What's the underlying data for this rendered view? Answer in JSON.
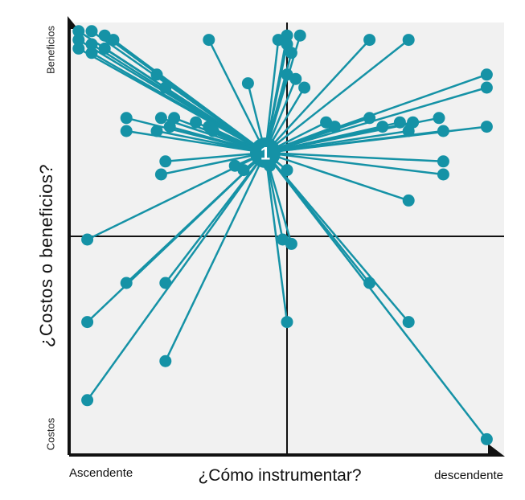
{
  "chart_data": {
    "type": "scatter",
    "xlabel": "¿Cómo instrumentar?",
    "ylabel": "¿Costos o beneficios?",
    "x_tick_labels": [
      "Ascendente",
      "descendente"
    ],
    "y_tick_labels": [
      "Costos",
      "Beneficios"
    ],
    "xlim": [
      0,
      100
    ],
    "ylim": [
      0,
      100
    ],
    "grid": false,
    "center_label": "1",
    "center": {
      "x": 45,
      "y": 70
    },
    "colors": {
      "series": "#1592a6",
      "background": "#f1f1f1",
      "axes": "#111111"
    },
    "points": [
      {
        "x": 2,
        "y": 98
      },
      {
        "x": 5,
        "y": 98
      },
      {
        "x": 8,
        "y": 97
      },
      {
        "x": 10,
        "y": 96
      },
      {
        "x": 2,
        "y": 96
      },
      {
        "x": 5,
        "y": 95
      },
      {
        "x": 8,
        "y": 94
      },
      {
        "x": 2,
        "y": 94
      },
      {
        "x": 5,
        "y": 93
      },
      {
        "x": 20,
        "y": 88
      },
      {
        "x": 22,
        "y": 85
      },
      {
        "x": 32,
        "y": 96
      },
      {
        "x": 41,
        "y": 86
      },
      {
        "x": 48,
        "y": 96
      },
      {
        "x": 50,
        "y": 97
      },
      {
        "x": 53,
        "y": 97
      },
      {
        "x": 50,
        "y": 95
      },
      {
        "x": 51,
        "y": 93
      },
      {
        "x": 50,
        "y": 88
      },
      {
        "x": 52,
        "y": 87
      },
      {
        "x": 54,
        "y": 85
      },
      {
        "x": 69,
        "y": 96
      },
      {
        "x": 78,
        "y": 96
      },
      {
        "x": 96,
        "y": 88
      },
      {
        "x": 96,
        "y": 85
      },
      {
        "x": 13,
        "y": 78
      },
      {
        "x": 21,
        "y": 78
      },
      {
        "x": 24,
        "y": 78
      },
      {
        "x": 29,
        "y": 77
      },
      {
        "x": 32,
        "y": 76
      },
      {
        "x": 13,
        "y": 75
      },
      {
        "x": 20,
        "y": 75
      },
      {
        "x": 23,
        "y": 76
      },
      {
        "x": 33,
        "y": 75
      },
      {
        "x": 59,
        "y": 77
      },
      {
        "x": 61,
        "y": 76
      },
      {
        "x": 69,
        "y": 78
      },
      {
        "x": 72,
        "y": 76
      },
      {
        "x": 76,
        "y": 77
      },
      {
        "x": 79,
        "y": 77
      },
      {
        "x": 85,
        "y": 78
      },
      {
        "x": 96,
        "y": 76
      },
      {
        "x": 78,
        "y": 75
      },
      {
        "x": 86,
        "y": 75
      },
      {
        "x": 22,
        "y": 68
      },
      {
        "x": 21,
        "y": 65
      },
      {
        "x": 38,
        "y": 67
      },
      {
        "x": 40,
        "y": 66
      },
      {
        "x": 46,
        "y": 67
      },
      {
        "x": 50,
        "y": 66
      },
      {
        "x": 86,
        "y": 68
      },
      {
        "x": 86,
        "y": 65
      },
      {
        "x": 78,
        "y": 59
      },
      {
        "x": 4,
        "y": 50
      },
      {
        "x": 49,
        "y": 50
      },
      {
        "x": 51,
        "y": 49
      },
      {
        "x": 13,
        "y": 40
      },
      {
        "x": 22,
        "y": 40
      },
      {
        "x": 69,
        "y": 40
      },
      {
        "x": 4,
        "y": 31
      },
      {
        "x": 50,
        "y": 31
      },
      {
        "x": 78,
        "y": 31
      },
      {
        "x": 22,
        "y": 22
      },
      {
        "x": 4,
        "y": 13
      },
      {
        "x": 96,
        "y": 4
      }
    ]
  }
}
